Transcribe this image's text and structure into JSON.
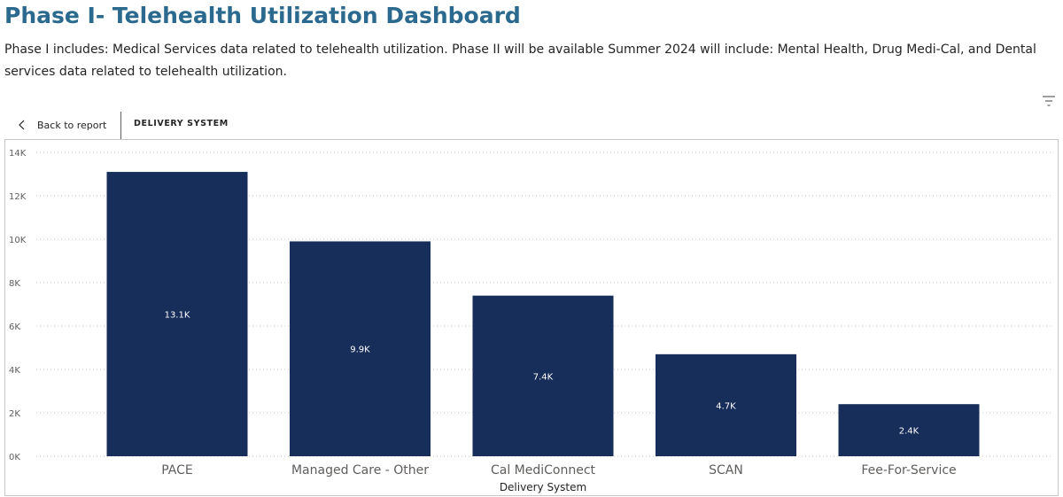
{
  "header": {
    "title": "Phase I- Telehealth Utilization Dashboard",
    "description": "Phase I includes: Medical Services data related to telehealth utilization. Phase II will be available Summer 2024 will include: Mental Health, Drug Medi-Cal, and Dental services data related to telehealth utilization."
  },
  "toolbar": {
    "filter_icon": "filter-icon"
  },
  "drill": {
    "back_label": "Back to report",
    "back_icon": "chevron-left-icon",
    "title": "DELIVERY SYSTEM"
  },
  "chart_data": {
    "type": "bar",
    "categories": [
      "PACE",
      "Managed Care - Other",
      "Cal MediConnect",
      "SCAN",
      "Fee-For-Service"
    ],
    "values": [
      13100,
      9900,
      7400,
      4700,
      2400
    ],
    "data_labels": [
      "13.1K",
      "9.9K",
      "7.4K",
      "4.7K",
      "2.4K"
    ],
    "ylim": [
      0,
      14000
    ],
    "y_ticks": [
      0,
      2000,
      4000,
      6000,
      8000,
      10000,
      12000,
      14000
    ],
    "y_tick_labels": [
      "0K",
      "2K",
      "4K",
      "6K",
      "8K",
      "10K",
      "12K",
      "14K"
    ],
    "xlabel": "Delivery System",
    "ylabel": "",
    "title": "",
    "grid": true,
    "bar_color": "#172e5a",
    "grid_color": "#c8c6c4"
  }
}
